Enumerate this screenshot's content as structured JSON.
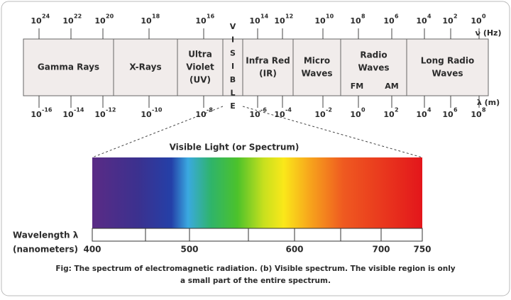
{
  "spectrum": {
    "segments": [
      {
        "lines": [
          "Gamma Rays"
        ]
      },
      {
        "lines": [
          "X-Rays"
        ]
      },
      {
        "lines": [
          "Ultra",
          "Violet",
          "(UV)"
        ]
      },
      {
        "lines": [
          "Infra Red",
          "(IR)"
        ]
      },
      {
        "lines": [
          "Micro",
          "Waves"
        ]
      },
      {
        "lines": [
          "Radio",
          "Waves"
        ],
        "sub": [
          "FM",
          "AM"
        ]
      },
      {
        "lines": [
          "Long Radio",
          "Waves"
        ]
      }
    ],
    "visible_letters": [
      "V",
      "I",
      "S",
      "I",
      "B",
      "L",
      "E"
    ],
    "frequency_label": "ν (Hz)",
    "frequency_ticks": [
      {
        "base": "10",
        "exp": "24"
      },
      {
        "base": "10",
        "exp": "22"
      },
      {
        "base": "10",
        "exp": "20"
      },
      {
        "base": "10",
        "exp": "18"
      },
      {
        "base": "10",
        "exp": "16"
      },
      {
        "base": "10",
        "exp": "14"
      },
      {
        "base": "10",
        "exp": "12"
      },
      {
        "base": "10",
        "exp": "10"
      },
      {
        "base": "10",
        "exp": "8"
      },
      {
        "base": "10",
        "exp": "6"
      },
      {
        "base": "10",
        "exp": "4"
      },
      {
        "base": "10",
        "exp": "2"
      },
      {
        "base": "10",
        "exp": "0"
      }
    ],
    "wavelength_label": "λ (m)",
    "wavelength_ticks": [
      {
        "base": "10",
        "exp": "-16"
      },
      {
        "base": "10",
        "exp": "-14"
      },
      {
        "base": "10",
        "exp": "-12"
      },
      {
        "base": "10",
        "exp": "-10"
      },
      {
        "base": "10",
        "exp": "-8"
      },
      {
        "base": "10",
        "exp": "-6"
      },
      {
        "base": "10",
        "exp": "-4"
      },
      {
        "base": "10",
        "exp": "-2"
      },
      {
        "base": "10",
        "exp": "0"
      },
      {
        "base": "10",
        "exp": "2"
      },
      {
        "base": "10",
        "exp": "4"
      },
      {
        "base": "10",
        "exp": "6"
      },
      {
        "base": "10",
        "exp": "8"
      }
    ]
  },
  "visible": {
    "title": "Visible Light (or Spectrum)",
    "axis_label": [
      "Wavelength λ",
      "(nanometers)"
    ],
    "ticks": [
      "400",
      "500",
      "600",
      "700",
      "750"
    ]
  },
  "caption": [
    "Fig: The spectrum of electromagnetic radiation. (b) Visible spectrum. The visible region is only",
    "a small part of the entire spectrum."
  ]
}
